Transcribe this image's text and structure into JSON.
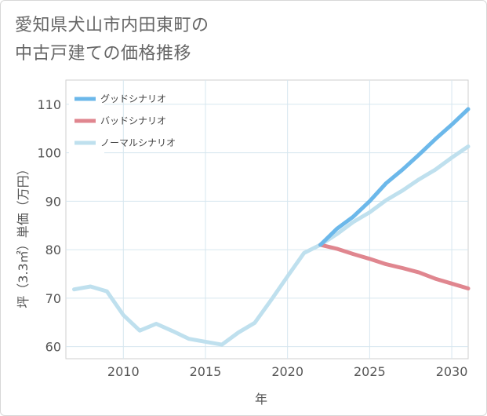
{
  "title_lines": [
    "愛知県犬山市内田東町の",
    "中古戸建ての価格推移"
  ],
  "chart_data": {
    "type": "line",
    "xlabel": "年",
    "ylabel": "坪（3.3㎡）単価（万円）",
    "xlim": [
      2006.5,
      2031
    ],
    "ylim": [
      57.5,
      115
    ],
    "xticks": [
      2010,
      2015,
      2020,
      2025,
      2030
    ],
    "yticks": [
      60,
      70,
      80,
      90,
      100,
      110
    ],
    "grid": true,
    "legend_position": "top-left",
    "series": [
      {
        "name": "グッドシナリオ",
        "color": "#6cb8ea",
        "x": [
          2022,
          2023,
          2024,
          2025,
          2026,
          2027,
          2028,
          2029,
          2030,
          2031
        ],
        "values": [
          81.0,
          84.3,
          86.8,
          90.0,
          93.7,
          96.5,
          99.6,
          102.8,
          105.8,
          109.0
        ]
      },
      {
        "name": "バッドシナリオ",
        "color": "#e0868f",
        "x": [
          2022,
          2023,
          2024,
          2025,
          2026,
          2027,
          2028,
          2029,
          2030,
          2031
        ],
        "values": [
          81.0,
          80.2,
          79.1,
          78.1,
          77.0,
          76.2,
          75.3,
          74.0,
          73.0,
          72.0
        ]
      },
      {
        "name": "ノーマルシナリオ",
        "color": "#bfe0ee",
        "x": [
          2007,
          2008,
          2009,
          2010,
          2011,
          2012,
          2013,
          2014,
          2015,
          2016,
          2017,
          2018,
          2019,
          2020,
          2021,
          2022,
          2023,
          2024,
          2025,
          2026,
          2027,
          2028,
          2029,
          2030,
          2031
        ],
        "values": [
          71.8,
          72.4,
          71.4,
          66.5,
          63.3,
          64.7,
          63.2,
          61.6,
          61.0,
          60.4,
          62.9,
          64.9,
          69.6,
          74.5,
          79.3,
          81.0,
          83.2,
          85.7,
          87.7,
          90.2,
          92.2,
          94.5,
          96.5,
          99.0,
          101.3
        ]
      }
    ]
  }
}
